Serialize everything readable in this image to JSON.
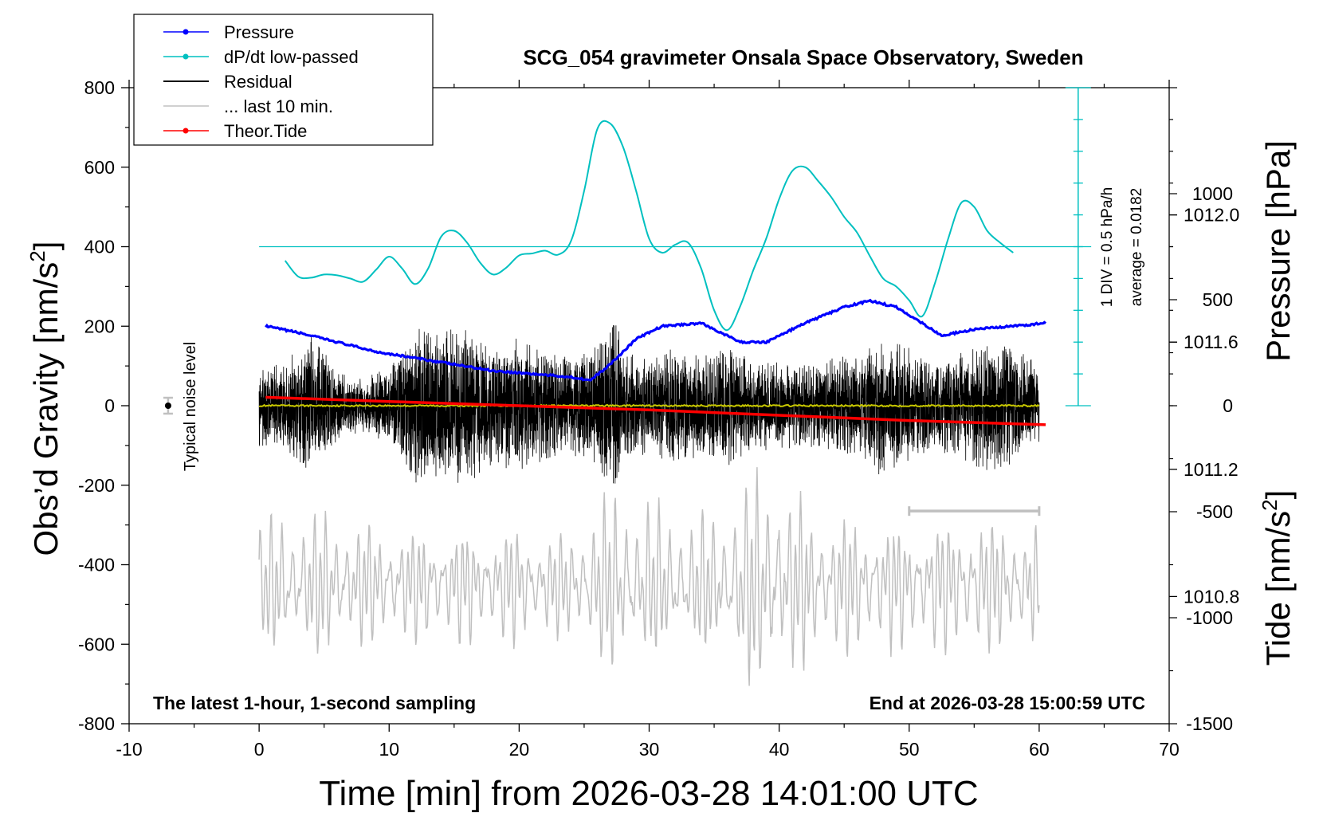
{
  "chart_data": {
    "type": "line",
    "title": "SCG_054 gravimeter Onsala Space Observatory, Sweden",
    "xlabel": "Time [min] from 2026-03-28 14:01:00 UTC",
    "ylabel_left": "Obs’d Gravity [nm/s²]",
    "ylabel_right_top": "Pressure [hPa]",
    "ylabel_right_bottom": "Tide [nm/s²]",
    "xlim": [
      -10,
      70
    ],
    "ylim": [
      -800,
      800
    ],
    "x_ticks": [
      "-10",
      "0",
      "10",
      "20",
      "30",
      "40",
      "50",
      "60",
      "70"
    ],
    "y_ticks_left": [
      "-800",
      "-600",
      "-400",
      "-200",
      "0",
      "200",
      "400",
      "600",
      "800"
    ],
    "y_ticks_pressure": [
      "1010.8",
      "1011.2",
      "1011.6",
      "1012.0"
    ],
    "y_ticks_tide": [
      "-1500",
      "-1000",
      "-500",
      "0",
      "500",
      "1000"
    ],
    "pressure_range_hpa": [
      1010.4,
      1012.4
    ],
    "tide_range_nm_s2": [
      -1500,
      1500
    ],
    "grid": false,
    "legend_position": "top-left",
    "legend": [
      {
        "name": "Pressure",
        "color": "#0000ff",
        "marker": true
      },
      {
        "name": "dP/dt low-passed",
        "color": "#00c0c0",
        "marker": true
      },
      {
        "name": "Residual",
        "color": "#000000",
        "marker": false
      },
      {
        "name": "... last 10 min.",
        "color": "#c0c0c0",
        "marker": false
      },
      {
        "name": "Theor.Tide",
        "color": "#ff0000",
        "marker": true
      }
    ],
    "annotations": {
      "bottom_left": "The latest 1-hour, 1-second sampling",
      "bottom_right": "End at 2026-03-28 15:00:59 UTC",
      "noise_label": "Typical noise level",
      "dpdt_scale": "1 DIV = 0.5 hPa/h",
      "dpdt_average": "average = 0.0182"
    },
    "series": [
      {
        "name": "Pressure",
        "unit": "hPa",
        "x": [
          0.5,
          3,
          6,
          9,
          12,
          15,
          18,
          21,
          24,
          25.5,
          27,
          29,
          31,
          34,
          37,
          39,
          42,
          45,
          47,
          49,
          51,
          52.5,
          55,
          58,
          60.5
        ],
        "y": [
          1011.65,
          1011.63,
          1011.6,
          1011.57,
          1011.55,
          1011.53,
          1011.51,
          1011.5,
          1011.49,
          1011.48,
          1011.53,
          1011.61,
          1011.65,
          1011.66,
          1011.6,
          1011.6,
          1011.66,
          1011.71,
          1011.73,
          1011.71,
          1011.66,
          1011.62,
          1011.64,
          1011.65,
          1011.66
        ]
      },
      {
        "name": "dP/dt low-passed",
        "unit": "relative",
        "baseline_gravity_units": 400,
        "x": [
          2,
          3,
          4,
          5,
          6,
          7,
          8,
          9,
          10,
          11,
          12,
          13,
          14,
          15,
          16,
          17,
          18,
          19,
          20,
          21,
          22,
          23,
          24,
          25,
          26,
          27,
          28,
          29,
          30,
          31,
          32,
          33,
          34,
          35,
          36,
          37,
          38,
          39,
          40,
          41,
          42,
          43,
          44,
          45,
          46,
          47,
          48,
          49,
          50,
          51,
          52,
          53,
          54,
          55,
          56,
          57,
          58
        ],
        "y": [
          365,
          325,
          322,
          330,
          328,
          320,
          312,
          342,
          375,
          345,
          306,
          345,
          425,
          440,
          410,
          360,
          330,
          347,
          378,
          383,
          390,
          380,
          415,
          540,
          695,
          710,
          650,
          540,
          420,
          385,
          405,
          410,
          345,
          240,
          190,
          250,
          340,
          420,
          520,
          590,
          600,
          565,
          525,
          475,
          435,
          375,
          320,
          300,
          265,
          225,
          310,
          420,
          510,
          500,
          440,
          410,
          385
        ]
      },
      {
        "name": "Residual",
        "unit": "nm/s²",
        "envelope_x": [
          0,
          2,
          4,
          6,
          8,
          10,
          12,
          14,
          16,
          18,
          20,
          22,
          24,
          26,
          27.5,
          28,
          30,
          32,
          34,
          36,
          38,
          40,
          42,
          44,
          46,
          48,
          50,
          52,
          54,
          56,
          58,
          60
        ],
        "envelope_amplitude": [
          120,
          130,
          220,
          100,
          80,
          110,
          230,
          220,
          230,
          170,
          210,
          160,
          140,
          180,
          290,
          160,
          140,
          180,
          140,
          180,
          130,
          130,
          120,
          140,
          150,
          210,
          170,
          130,
          160,
          200,
          170,
          120
        ]
      },
      {
        "name": "... last 10 min.",
        "unit": "nm/s²",
        "offset_gravity_units": -450,
        "envelope_x": [
          0,
          5,
          10,
          15,
          20,
          24,
          27,
          30,
          33,
          36,
          38,
          39.5,
          41,
          44,
          47,
          50,
          54,
          57,
          60
        ],
        "envelope_amplitude": [
          170,
          190,
          140,
          150,
          150,
          130,
          240,
          210,
          170,
          200,
          280,
          300,
          230,
          180,
          170,
          160,
          180,
          170,
          150
        ]
      },
      {
        "name": "Theor.Tide",
        "unit": "nm/s²",
        "x": [
          0.5,
          10,
          20,
          30,
          40,
          50,
          60.5
        ],
        "y": [
          40,
          20,
          0,
          -20,
          -45,
          -70,
          -90
        ]
      },
      {
        "name": "lowpassed residual (yellow)",
        "unit": "nm/s²",
        "x": [
          0,
          60
        ],
        "y": [
          0,
          0
        ]
      }
    ],
    "last_10_min_bar": {
      "x_start": 50,
      "x_end": 60,
      "y": -265
    },
    "noise_bar": {
      "x": -7,
      "y": 0,
      "half_height": 20
    }
  }
}
